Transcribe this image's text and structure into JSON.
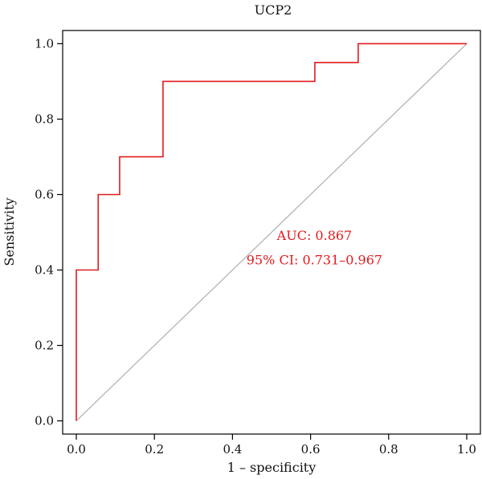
{
  "chart_data": {
    "type": "line",
    "title": "UCP2",
    "xlabel": "1 – specificity",
    "ylabel": "Sensitivity",
    "xlim": [
      -0.035,
      1.035
    ],
    "ylim": [
      -0.035,
      1.035
    ],
    "x_ticks": [
      "0.0",
      "0.2",
      "0.4",
      "0.6",
      "0.8",
      "1.0"
    ],
    "y_ticks": [
      "0.0",
      "0.2",
      "0.4",
      "0.6",
      "0.8",
      "1.0"
    ],
    "grid": false,
    "legend": "none",
    "series": [
      {
        "color": "#e31a1c",
        "step": true,
        "points": [
          [
            0.0,
            0.0
          ],
          [
            0.0,
            0.4
          ],
          [
            0.056,
            0.4
          ],
          [
            0.056,
            0.6
          ],
          [
            0.111,
            0.6
          ],
          [
            0.111,
            0.7
          ],
          [
            0.222,
            0.7
          ],
          [
            0.222,
            0.9
          ],
          [
            0.611,
            0.9
          ],
          [
            0.611,
            0.95
          ],
          [
            0.722,
            0.95
          ],
          [
            0.722,
            1.0
          ],
          [
            1.0,
            1.0
          ]
        ]
      },
      {
        "color": "#b3b3b3",
        "points": [
          [
            0.0,
            0.0
          ],
          [
            1.0,
            1.0
          ]
        ]
      }
    ],
    "annotations": [
      {
        "text": "AUC: 0.867",
        "x": 0.61,
        "y": 0.48,
        "color": "#e31a1c"
      },
      {
        "text": "95% CI: 0.731–0.967",
        "x": 0.61,
        "y": 0.415,
        "color": "#e31a1c"
      }
    ]
  }
}
